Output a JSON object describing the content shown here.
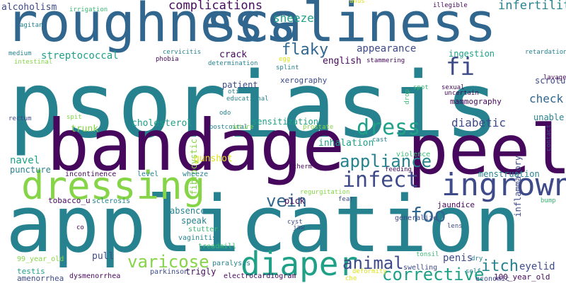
{
  "palette": {
    "dark_purple": "#46085c",
    "indigo": "#3e4a89",
    "blue": "#31678e",
    "teal": "#26828e",
    "green_teal": "#1fa187",
    "green": "#3bbb75",
    "lime": "#86d549",
    "yellow": "#dfe318"
  },
  "words": [
    {
      "text": "psoriasis",
      "color": "#26828e",
      "vertical": false
    },
    {
      "text": "application",
      "color": "#26828e",
      "vertical": false
    },
    {
      "text": "bandage",
      "color": "#46085c",
      "vertical": false
    },
    {
      "text": "roughness",
      "color": "#31678e",
      "vertical": false
    },
    {
      "text": "scaliness",
      "color": "#31678e",
      "vertical": false
    },
    {
      "text": "peel",
      "color": "#46085c",
      "vertical": false
    },
    {
      "text": "dressing",
      "color": "#86d549",
      "vertical": false
    },
    {
      "text": "ingrown",
      "color": "#3e4a89",
      "vertical": false
    },
    {
      "text": "diaper",
      "color": "#1fa187",
      "vertical": false
    },
    {
      "text": "infect",
      "color": "#3e4a89",
      "vertical": false
    },
    {
      "text": "dress",
      "color": "#1fa187",
      "vertical": false
    },
    {
      "text": "vein",
      "color": "#31678e",
      "vertical": false
    },
    {
      "text": "fi",
      "color": "#3e4a89",
      "vertical": false
    },
    {
      "text": "foo",
      "color": "#31678e",
      "vertical": false
    },
    {
      "text": "itch",
      "color": "#26828e",
      "vertical": false
    },
    {
      "text": "varicose",
      "color": "#86d549",
      "vertical": false
    },
    {
      "text": "corrective",
      "color": "#1fa187",
      "vertical": false
    },
    {
      "text": "animal",
      "color": "#3e4a89",
      "vertical": false
    },
    {
      "text": "appliance",
      "color": "#26828e",
      "vertical": false
    },
    {
      "text": "flaky",
      "color": "#31678e",
      "vertical": false
    },
    {
      "text": "complications",
      "color": "#46085c",
      "vertical": false
    },
    {
      "text": "infertility",
      "color": "#26828e",
      "vertical": false
    },
    {
      "text": "sneeze",
      "color": "#1fa187",
      "vertical": false
    },
    {
      "text": "alcoholism",
      "color": "#3e4a89",
      "vertical": false
    },
    {
      "text": "check",
      "color": "#31678e",
      "vertical": false
    },
    {
      "text": "diabetic",
      "color": "#3e4a89",
      "vertical": false
    },
    {
      "text": "eyelid",
      "color": "#3e4a89",
      "vertical": false
    },
    {
      "text": "penis",
      "color": "#3e4a89",
      "vertical": false
    },
    {
      "text": "appearance",
      "color": "#3e4a89",
      "vertical": false
    },
    {
      "text": "streptococcal",
      "color": "#1fa187",
      "vertical": false
    },
    {
      "text": "inflammatory",
      "color": "#3e4a89",
      "vertical": true
    },
    {
      "text": "scrotum",
      "color": "#3e4a89",
      "vertical": false
    },
    {
      "text": "navel",
      "color": "#1fa187",
      "vertical": false
    },
    {
      "text": "trunk",
      "color": "#86d549",
      "vertical": false
    },
    {
      "text": "cholesterol",
      "color": "#1fa187",
      "vertical": false
    },
    {
      "text": "inhalation",
      "color": "#1fa187",
      "vertical": false
    },
    {
      "text": "menstruation",
      "color": "#26828e",
      "vertical": false
    },
    {
      "text": "puncture",
      "color": "#26828e",
      "vertical": false
    },
    {
      "text": "unable",
      "color": "#26828e",
      "vertical": false
    },
    {
      "text": "crack",
      "color": "#46085c",
      "vertical": false
    },
    {
      "text": "english",
      "color": "#46085c",
      "vertical": false
    },
    {
      "text": "ingestion",
      "color": "#1fa187",
      "vertical": false
    },
    {
      "text": "patient",
      "color": "#3e4a89",
      "vertical": false
    },
    {
      "text": "sensitization",
      "color": "#1fa187",
      "vertical": false
    },
    {
      "text": "xerography",
      "color": "#3e4a89",
      "vertical": false
    },
    {
      "text": "absence",
      "color": "#26828e",
      "vertical": false
    },
    {
      "text": "speak",
      "color": "#26828e",
      "vertical": false
    },
    {
      "text": "pick",
      "color": "#46085c",
      "vertical": false
    },
    {
      "text": "pull",
      "color": "#3e4a89",
      "vertical": false
    },
    {
      "text": "gunshot",
      "color": "#dfe318",
      "vertical": false
    },
    {
      "text": "tobacco_u",
      "color": "#46085c",
      "vertical": false
    },
    {
      "text": "amenorrhea",
      "color": "#3e4a89",
      "vertical": false
    },
    {
      "text": "testis",
      "color": "#1fa187",
      "vertical": false
    },
    {
      "text": "trigly",
      "color": "#46085c",
      "vertical": false
    },
    {
      "text": "mammography",
      "color": "#46085c",
      "vertical": false
    },
    {
      "text": "jaundice",
      "color": "#46085c",
      "vertical": false
    },
    {
      "text": "fibrocystic",
      "color": "#86d549",
      "vertical": true
    },
    {
      "text": "violence",
      "color": "#3bbb75",
      "vertical": false
    },
    {
      "text": "wheeze",
      "color": "#26828e",
      "vertical": false
    },
    {
      "text": "level",
      "color": "#26828e",
      "vertical": false
    },
    {
      "text": "incontinence",
      "color": "#46085c",
      "vertical": false
    },
    {
      "text": "sclerosis",
      "color": "#26828e",
      "vertical": false
    },
    {
      "text": "stutter",
      "color": "#3bbb75",
      "vertical": false
    },
    {
      "text": "vaginitis",
      "color": "#26828e",
      "vertical": false
    },
    {
      "text": "treadmill",
      "color": "#3bbb75",
      "vertical": false
    },
    {
      "text": "paralysis",
      "color": "#26828e",
      "vertical": false
    },
    {
      "text": "parkinson",
      "color": "#3e4a89",
      "vertical": false
    },
    {
      "text": "electrocardiogram",
      "color": "#46085c",
      "vertical": false
    },
    {
      "text": "dysmenorrhea",
      "color": "#46085c",
      "vertical": false
    },
    {
      "text": "economic",
      "color": "#3e4a89",
      "vertical": false
    },
    {
      "text": "100_year_old",
      "color": "#46085c",
      "vertical": false
    },
    {
      "text": "99_year_old",
      "color": "#86d549",
      "vertical": false
    },
    {
      "text": "swelling",
      "color": "#3e4a89",
      "vertical": false
    },
    {
      "text": "generalize",
      "color": "#3e4a89",
      "vertical": false
    },
    {
      "text": "tonsil",
      "color": "#3bbb75",
      "vertical": false
    },
    {
      "text": "deformity",
      "color": "#dfe318",
      "vertical": false
    },
    {
      "text": "che",
      "color": "#dfe318",
      "vertical": false
    },
    {
      "text": "self",
      "color": "#26828e",
      "vertical": false
    },
    {
      "text": "dry",
      "color": "#26828e",
      "vertical": false
    },
    {
      "text": "lens",
      "color": "#3e4a89",
      "vertical": false
    },
    {
      "text": "cyst",
      "color": "#3e4a89",
      "vertical": false
    },
    {
      "text": "jaw",
      "color": "#3e4a89",
      "vertical": false
    },
    {
      "text": "fear",
      "color": "#3e4a89",
      "vertical": false
    },
    {
      "text": "regurgitation",
      "color": "#86d549",
      "vertical": false
    },
    {
      "text": "therm",
      "color": "#46085c",
      "vertical": false
    },
    {
      "text": "feeding",
      "color": "#46085c",
      "vertical": false
    },
    {
      "text": "cast",
      "color": "#26828e",
      "vertical": false
    },
    {
      "text": "prostate",
      "color": "#86d549",
      "vertical": false
    },
    {
      "text": "nature",
      "color": "#86d549",
      "vertical": false
    },
    {
      "text": "postcoital",
      "color": "#26828e",
      "vertical": false
    },
    {
      "text": "odo",
      "color": "#26828e",
      "vertical": false
    },
    {
      "text": "educational",
      "color": "#26828e",
      "vertical": false
    },
    {
      "text": "otitis",
      "color": "#26828e",
      "vertical": false
    },
    {
      "text": "splint",
      "color": "#26828e",
      "vertical": false
    },
    {
      "text": "egg",
      "color": "#dfe318",
      "vertical": false
    },
    {
      "text": "drop",
      "color": "#3bbb75",
      "vertical": true
    },
    {
      "text": "spot",
      "color": "#3bbb75",
      "vertical": false
    },
    {
      "text": "sexual",
      "color": "#46085c",
      "vertical": false
    },
    {
      "text": "uncertain",
      "color": "#46085c",
      "vertical": false
    },
    {
      "text": "stammering",
      "color": "#46085c",
      "vertical": false
    },
    {
      "text": "determination",
      "color": "#26828e",
      "vertical": false
    },
    {
      "text": "phobia",
      "color": "#46085c",
      "vertical": false
    },
    {
      "text": "cervicitis",
      "color": "#26828e",
      "vertical": false
    },
    {
      "text": "medium",
      "color": "#26828e",
      "vertical": false
    },
    {
      "text": "intestinal",
      "color": "#86d549",
      "vertical": false
    },
    {
      "text": "agitan",
      "color": "#26828e",
      "vertical": false
    },
    {
      "text": "irrigation",
      "color": "#3bbb75",
      "vertical": false
    },
    {
      "text": "anus",
      "color": "#dfe318",
      "vertical": false
    },
    {
      "text": "illegible",
      "color": "#46085c",
      "vertical": false
    },
    {
      "text": "retardation",
      "color": "#26828e",
      "vertical": false
    },
    {
      "text": "lavage",
      "color": "#46085c",
      "vertical": false
    },
    {
      "text": "contact",
      "color": "#3e4a89",
      "vertical": true
    },
    {
      "text": "bump",
      "color": "#3bbb75",
      "vertical": false
    },
    {
      "text": "spit",
      "color": "#86d549",
      "vertical": false
    },
    {
      "text": "rectum",
      "color": "#3e4a89",
      "vertical": false
    },
    {
      "text": "co",
      "color": "#46085c",
      "vertical": false
    }
  ]
}
